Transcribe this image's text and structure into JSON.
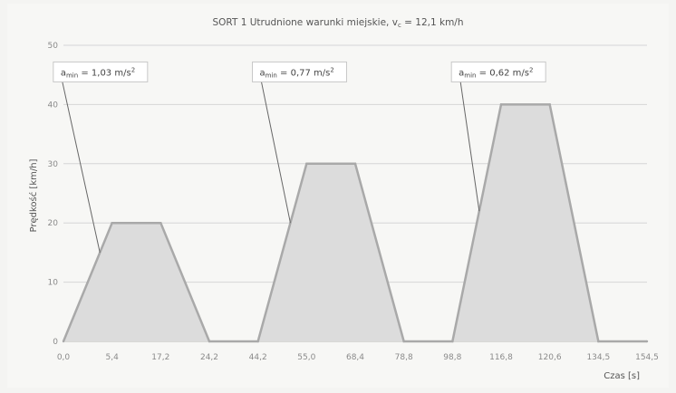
{
  "chart_data": {
    "type": "area",
    "title": {
      "prefix": "SORT 1 Utrudnione warunki miejskie, v",
      "sub": "c",
      "suffix": " = 12,1 km/h"
    },
    "xlabel": "Czas [s]",
    "ylabel": "Prędkość [km/h]",
    "ylim": [
      0,
      50
    ],
    "y_ticks": [
      0,
      10,
      20,
      30,
      40,
      50
    ],
    "x_ticks": [
      "0,0",
      "5,4",
      "17,2",
      "24,2",
      "44,2",
      "55,0",
      "68,4",
      "78,8",
      "98,8",
      "116,8",
      "120,6",
      "134,5",
      "154,5"
    ],
    "grid": "horizontal",
    "series": [
      {
        "values": [
          0,
          20,
          20,
          0,
          0,
          30,
          30,
          0,
          0,
          40,
          40,
          0,
          0
        ]
      }
    ],
    "annotations": [
      {
        "label_prefix": "a",
        "label_sub": "min",
        "label_value": " = 1,03 m/s",
        "label_sup": "2",
        "target_x": "0,0",
        "target_y": 15
      },
      {
        "label_prefix": "a",
        "label_sub": "min",
        "label_value": " = 0,77 m/s",
        "label_sup": "2",
        "target_x": "44,2",
        "target_y": 20
      },
      {
        "label_prefix": "a",
        "label_sub": "min",
        "label_value": " = 0,62 m/s",
        "label_sup": "2",
        "target_x": "98,8",
        "target_y": 22
      }
    ],
    "colors": {
      "fill": "#dcdcdc",
      "line": "#a9a9a9",
      "grid": "#d6d6d6"
    }
  }
}
